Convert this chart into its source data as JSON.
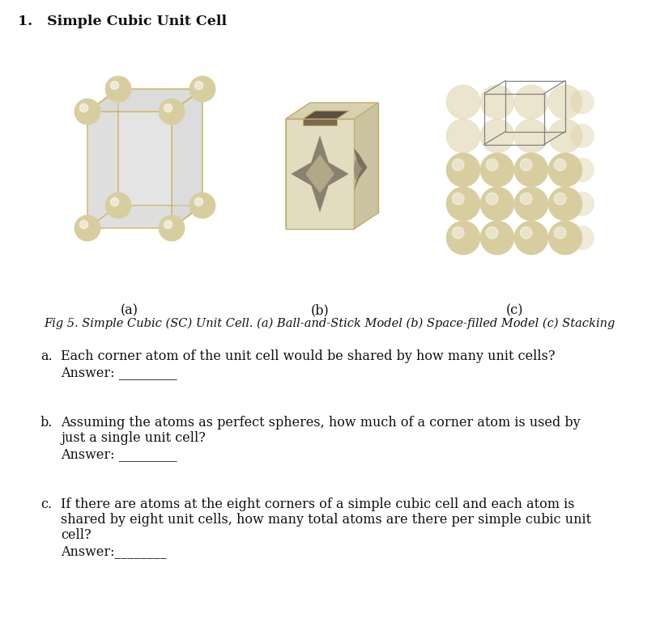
{
  "title": "1.   Simple Cubic Unit Cell",
  "fig_caption": "Fig 5. Simple Cubic (SC) Unit Cell. (a) Ball-and-Stick Model (b) Space-filled Model (c) Stacking",
  "label_a": "(a)",
  "label_b": "(b)",
  "label_c": "(c)",
  "bg_color": "#ffffff",
  "text_color": "#111111",
  "title_fontsize": 12.5,
  "body_fontsize": 11.5,
  "caption_fontsize": 10.5,
  "atom_color": "#d8cd9e",
  "atom_edge_color": "#a89860",
  "cube_face_color": "#d0d0d0",
  "cube_face_alpha": 0.55,
  "cube_edge_color": "#c8a020",
  "space_cube_color": "#e2dcc0",
  "space_cube_edge": "#c0b070",
  "wire_color": "#808080"
}
